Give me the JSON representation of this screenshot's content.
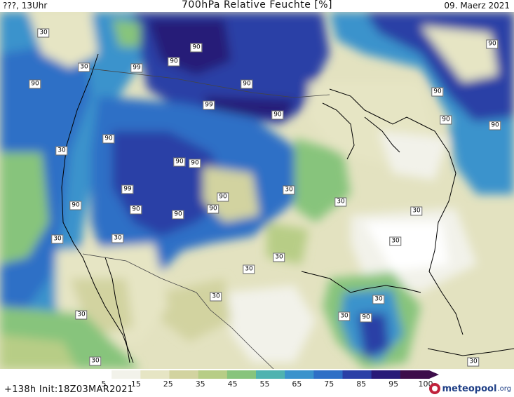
{
  "header": {
    "left": "???, 13Uhr",
    "title": "700hPa Relative Feuchte [%]",
    "date": "09. Maerz 2021"
  },
  "footer": {
    "run_info": "+138h  Init:18Z03MAR2021",
    "brand": "meteopool",
    "brand_suffix": ".org"
  },
  "legend": {
    "ticks": [
      "5",
      "15",
      "25",
      "35",
      "45",
      "55",
      "65",
      "75",
      "85",
      "95",
      "100"
    ],
    "colors": [
      "#ffffff",
      "#f2f2ea",
      "#e6e5c4",
      "#d2d3a0",
      "#b7cd86",
      "#87c47c",
      "#4fb3b0",
      "#3a93cc",
      "#2e6fc6",
      "#2a3fa6",
      "#281a78",
      "#3d0d4a"
    ]
  },
  "map": {
    "contour_labels": [
      "30",
      "90",
      "99",
      "90",
      "30",
      "90",
      "90",
      "99",
      "90",
      "90",
      "30",
      "90",
      "90",
      "99",
      "90",
      "90",
      "90",
      "90",
      "30",
      "90",
      "30",
      "90",
      "90",
      "30",
      "30",
      "30",
      "30",
      "30",
      "30",
      "30",
      "90",
      "90",
      "30",
      "30",
      "30",
      "90",
      "30",
      "30"
    ]
  }
}
